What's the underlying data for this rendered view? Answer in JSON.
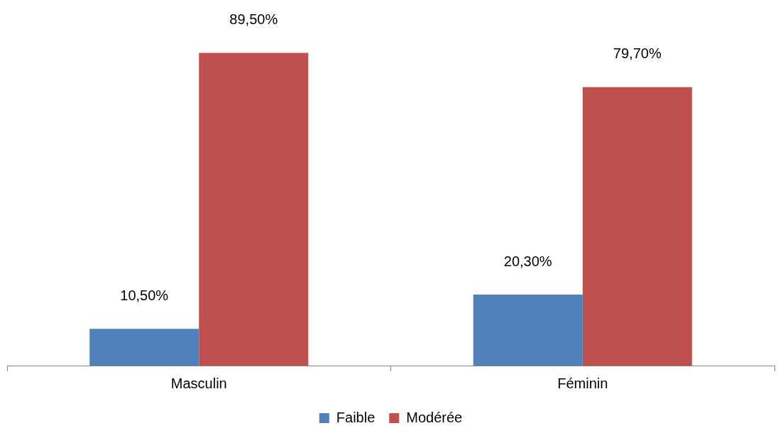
{
  "chart_data": {
    "type": "bar",
    "categories": [
      "Masculin",
      "Féminin"
    ],
    "series": [
      {
        "name": "Faible",
        "color": "#4f81bd",
        "values": [
          10.5,
          20.3
        ],
        "value_labels": [
          "10,50%",
          "20,30%"
        ]
      },
      {
        "name": "Modérée",
        "color": "#c0504d",
        "values": [
          89.5,
          79.7
        ],
        "value_labels": [
          "89,50%",
          "79,70%"
        ]
      }
    ],
    "legend": "bottom",
    "grid": false
  }
}
